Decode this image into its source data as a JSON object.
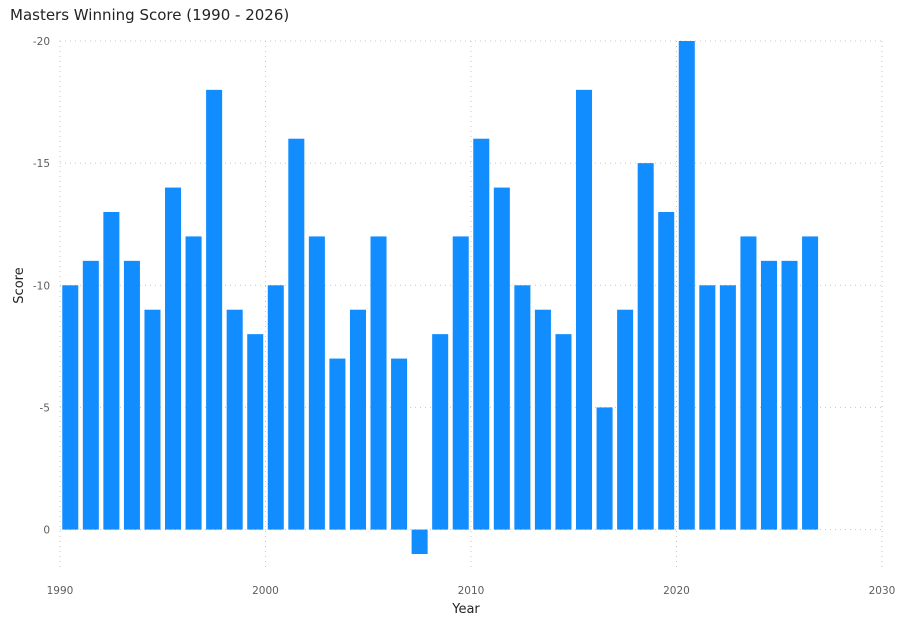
{
  "chart_data": {
    "type": "bar",
    "title": "Masters Winning Score (1990 - 2026)",
    "xlabel": "Year",
    "ylabel": "Score",
    "x": [
      1990,
      1991,
      1992,
      1993,
      1994,
      1995,
      1996,
      1997,
      1998,
      1999,
      2000,
      2001,
      2002,
      2003,
      2004,
      2005,
      2006,
      2007,
      2008,
      2009,
      2010,
      2011,
      2012,
      2013,
      2014,
      2015,
      2016,
      2017,
      2018,
      2019,
      2020,
      2021,
      2022,
      2023,
      2024,
      2025,
      2026
    ],
    "values": [
      -10,
      -11,
      -13,
      -11,
      -9,
      -14,
      -12,
      -18,
      -9,
      -8,
      -10,
      -16,
      -12,
      -7,
      -9,
      -12,
      -7,
      1,
      -8,
      -12,
      -16,
      -14,
      -10,
      -9,
      -8,
      -18,
      -5,
      -9,
      -15,
      -13,
      -20,
      -10,
      -10,
      -12,
      -11,
      -11,
      -12
    ],
    "xlim": [
      1990,
      2030
    ],
    "x_ticks": [
      "1990",
      "2000",
      "2010",
      "2020",
      "2030"
    ],
    "ylim": [
      1,
      -20
    ],
    "y_ticks": [
      "-20",
      "-15",
      "-10",
      "-5",
      "0"
    ],
    "y_axis_reversed": true,
    "grid": true,
    "color": "#118DFF"
  }
}
